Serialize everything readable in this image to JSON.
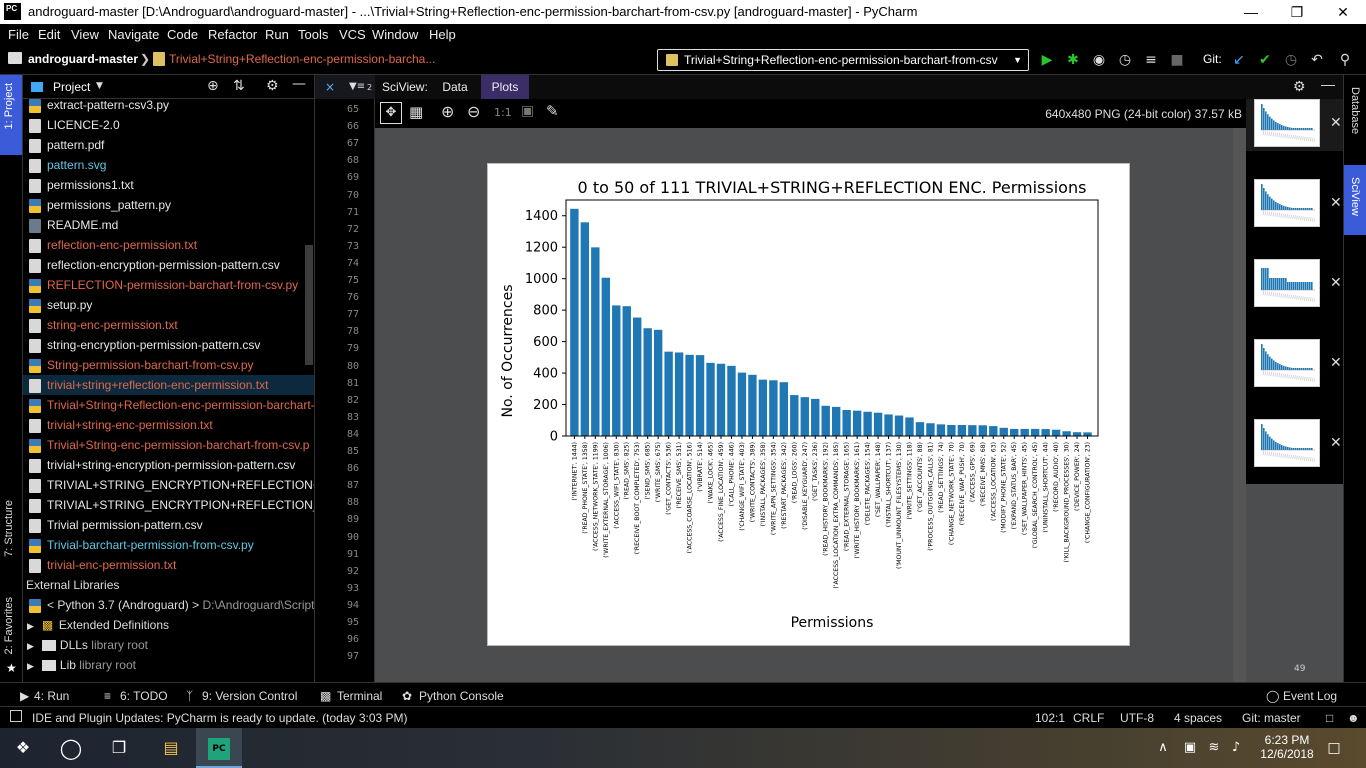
{
  "window": {
    "title": "androguard-master [D:\\Androguard\\androguard-master] - ...\\Trivial+String+Reflection-enc-permission-barchart-from-csv.py [androguard-master] - PyCharm",
    "logo": "PC"
  },
  "menu": [
    "File",
    "Edit",
    "View",
    "Navigate",
    "Code",
    "Refactor",
    "Run",
    "Tools",
    "VCS",
    "Window",
    "Help"
  ],
  "toolbar": {
    "project": "androguard-master",
    "file": "Trivial+String+Reflection-enc-permission-barcha...",
    "run_config": "Trivial+String+Reflection-enc-permission-barchart-from-csv",
    "git_label": "Git:"
  },
  "left_tabs": {
    "project": "1: Project",
    "structure": "7: Structure",
    "favorites": "2: Favorites"
  },
  "right_tabs": {
    "database": "Database",
    "sciview": "SciView"
  },
  "project_panel": {
    "title": "Project",
    "items": [
      {
        "name": "extract-pattern-csv3.py",
        "color": "#e8e8e8",
        "icon": "py"
      },
      {
        "name": "LICENCE-2.0",
        "color": "#e8e8e8",
        "icon": "file"
      },
      {
        "name": "pattern.pdf",
        "color": "#e8e8e8",
        "icon": "pdf"
      },
      {
        "name": "pattern.svg",
        "color": "#5fc9e6",
        "icon": "svg"
      },
      {
        "name": "permissions1.txt",
        "color": "#e8e8e8",
        "icon": "txt"
      },
      {
        "name": "permissions_pattern.py",
        "color": "#e8e8e8",
        "icon": "py"
      },
      {
        "name": "README.md",
        "color": "#e8e8e8",
        "icon": "md"
      },
      {
        "name": "reflection-enc-permission.txt",
        "color": "#e0684b",
        "icon": "txt"
      },
      {
        "name": "reflection-encryption-permission-pattern.csv",
        "color": "#e8e8e8",
        "icon": "csv"
      },
      {
        "name": "REFLECTION-permission-barchart-from-csv.py",
        "color": "#e0684b",
        "icon": "py"
      },
      {
        "name": "setup.py",
        "color": "#e8e8e8",
        "icon": "py"
      },
      {
        "name": "string-enc-permission.txt",
        "color": "#e0684b",
        "icon": "txt"
      },
      {
        "name": "string-encryption-permission-pattern.csv",
        "color": "#e8e8e8",
        "icon": "csv"
      },
      {
        "name": "String-permission-barchart-from-csv.py",
        "color": "#e0684b",
        "icon": "py"
      },
      {
        "name": "trivial+string+reflection-enc-permission.txt",
        "color": "#e0684b",
        "icon": "txt",
        "selected": true
      },
      {
        "name": "Trivial+String+Reflection-enc-permission-barchart-f",
        "color": "#e0684b",
        "icon": "py"
      },
      {
        "name": "trivial+string-enc-permission.txt",
        "color": "#e0684b",
        "icon": "txt"
      },
      {
        "name": "Trivial+String-enc-permission-barchart-from-csv.p",
        "color": "#e0684b",
        "icon": "py"
      },
      {
        "name": "trivial+string-encryption-permission-pattern.csv",
        "color": "#e8e8e8",
        "icon": "csv"
      },
      {
        "name": "TRIVIAL+STRING_ENCRYPTION+REFLECTION+CLA",
        "color": "#e8e8e8",
        "icon": "file"
      },
      {
        "name": "TRIVIAL+STRING_ENCRYTPION+REFLECTION_APK-",
        "color": "#e8e8e8",
        "icon": "file"
      },
      {
        "name": "Trivial permission-pattern.csv",
        "color": "#e8e8e8",
        "icon": "csv"
      },
      {
        "name": "Trivial-barchart-permission-from-csv.py",
        "color": "#5fc9e6",
        "icon": "py"
      },
      {
        "name": "trivial-enc-permission.txt",
        "color": "#e0684b",
        "icon": "txt"
      }
    ],
    "external": "External Libraries",
    "python": "< Python 3.7 (Androguard) >",
    "python_path": "D:\\Androguard\\Scripts",
    "ext_defs": "Extended Definitions",
    "dlls": "DLLs",
    "lib": "Lib",
    "library_root": "library root"
  },
  "gutter": {
    "lines": [
      "65",
      "66",
      "67",
      "68",
      "69",
      "70",
      "71",
      "72",
      "73",
      "74",
      "75",
      "76",
      "77",
      "78",
      "79",
      "80",
      "81",
      "82",
      "83",
      "84",
      "85",
      "86",
      "87",
      "88",
      "89",
      "90",
      "91",
      "92",
      "93",
      "94",
      "95",
      "96",
      "97"
    ],
    "column_info": "2"
  },
  "sciview": {
    "label": "SciView:",
    "tabs": [
      "Data",
      "Plots"
    ],
    "image_info": "640x480 PNG (24-bit color) 37.57 kB",
    "zoom_1_1": "1:1",
    "thumb_count": "49"
  },
  "chart_data": {
    "type": "bar",
    "title": "0 to 50 of 111 TRIVIAL+STRING+REFLECTION ENC. Permissions",
    "xlabel": "Permissions",
    "ylabel": "No. of Occurrences",
    "ylim": [
      0,
      1500
    ],
    "yticks": [
      0,
      200,
      400,
      600,
      800,
      1000,
      1200,
      1400
    ],
    "color": "#1f77b4",
    "categories": [
      "('INTERNET', 1444)",
      "('READ_PHONE_STATE', 1358)",
      "('ACCESS_NETWORK_STATE', 1199)",
      "('WRITE_EXTERNAL_STORAGE', 1006)",
      "('ACCESS_WIFI_STATE', 830)",
      "('READ_SMS', 825)",
      "('RECEIVE_BOOT_COMPLETED', 753)",
      "('SEND_SMS', 685)",
      "('WRITE_SMS', 675)",
      "('GET_CONTACTS', 536)",
      "('RECEIVE_SMS', 531)",
      "('ACCESS_COARSE_LOCATION', 516)",
      "('VIBRATE', 514)",
      "('WAKE_LOCK', 465)",
      "('ACCESS_FINE_LOCATION', 459)",
      "('CALL_PHONE', 446)",
      "('CHANGE_WIFI_STATE', 403)",
      "('WRITE_CONTACTS', 389)",
      "('INSTALL_PACKAGES', 358)",
      "('WRITE_APN_SETTINGS', 354)",
      "('RESTART_PACKAGES', 342)",
      "('READ_LOGS', 260)",
      "('DISABLE_KEYGUARD', 247)",
      "('GET_TASKS', 236)",
      "('READ_HISTORY_BOOKMARKS', 192)",
      "('ACCESS_LOCATION_EXTRA_COMMANDS', 185)",
      "('READ_EXTERNAL_STORAGE', 165)",
      "('WRITE_HISTORY_BOOKMARKS', 161)",
      "('DELETE_PACKAGES', 154)",
      "('SET_WALLPAPER', 148)",
      "('INSTALL_SHORTCUT', 137)",
      "('MOUNT_UNMOUNT_FILESYSTEMS', 130)",
      "('WRITE_SETTINGS', 118)",
      "('GET_ACCOUNTS', 88)",
      "('PROCESS_OUTGOING_CALLS', 81)",
      "('READ_SETTINGS', 74)",
      "('CHANGE_NETWORK_STATE', 70)",
      "('RECEIVE_WAP_PUSH', 70)",
      "('ACCESS_GPS', 69)",
      "('RECEIVE_MMS', 68)",
      "('ACCESS_LOCATION', 63)",
      "('MODIFY_PHONE_STATE', 52)",
      "('EXPAND_STATUS_BAR', 45)",
      "('SET_WALLPAPER_HINTS', 45)",
      "('GLOBAL_SEARCH_CONTROL', 45)",
      "('UNINSTALL_SHORTCUT', 44)",
      "('RECORD_AUDIO', 40)",
      "('KILL_BACKGROUND_PROCESSES', 30)",
      "('DEVICE_POWER', 24)",
      "('CHANGE_CONFIGURATION', 23)"
    ],
    "values": [
      1444,
      1358,
      1199,
      1006,
      830,
      825,
      753,
      685,
      675,
      536,
      531,
      516,
      514,
      465,
      459,
      446,
      403,
      389,
      358,
      354,
      342,
      260,
      247,
      236,
      192,
      185,
      165,
      161,
      154,
      148,
      137,
      130,
      118,
      88,
      81,
      74,
      70,
      70,
      69,
      68,
      63,
      52,
      45,
      45,
      45,
      44,
      40,
      30,
      24,
      23
    ]
  },
  "bottom_tools": {
    "run": "4: Run",
    "todo": "6: TODO",
    "vcs": "9: Version Control",
    "terminal": "Terminal",
    "console": "Python Console",
    "event_log": "Event Log"
  },
  "status": {
    "message": "IDE and Plugin Updates: PyCharm is ready to update. (today 3:03 PM)",
    "position": "102:1",
    "line_sep": "CRLF",
    "encoding": "UTF-8",
    "indent": "4 spaces",
    "git": "Git: master"
  },
  "taskbar": {
    "time": "6:23 PM",
    "date": "12/6/2018"
  }
}
